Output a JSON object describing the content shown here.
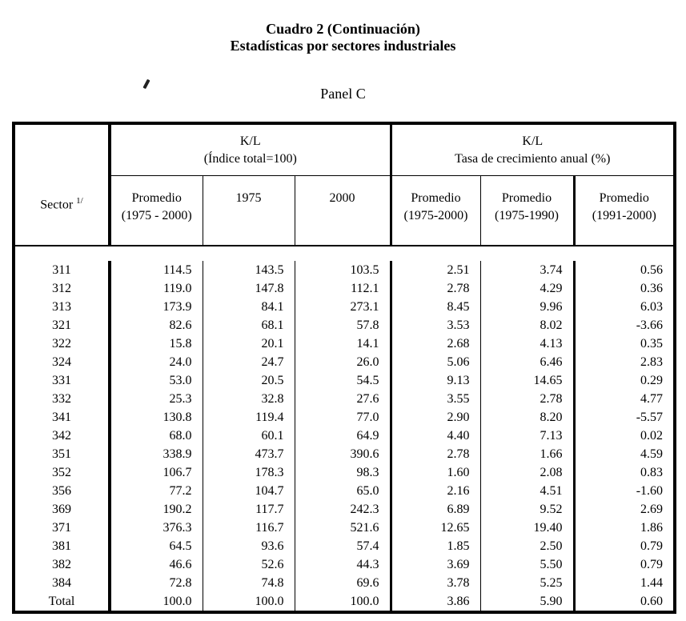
{
  "page": {
    "title_line1": "Cuadro 2 (Continuación)",
    "title_line2": "Estadísticas por sectores industriales",
    "panel_label": "Panel C"
  },
  "colors": {
    "text": "#000000",
    "border": "#000000",
    "background": "#ffffff"
  },
  "table": {
    "sector_header": {
      "label": "Sector",
      "superscript": "1/"
    },
    "groups": [
      {
        "line1": "K/L",
        "line2": "(Índice total=100)"
      },
      {
        "line1": "K/L",
        "line2": "Tasa de crecimiento anual (%)"
      }
    ],
    "columns": [
      {
        "line1": "Promedio",
        "line2": "(1975 - 2000)"
      },
      {
        "line1": "1975",
        "line2": ""
      },
      {
        "line1": "2000",
        "line2": ""
      },
      {
        "line1": "Promedio",
        "line2": "(1975-2000)"
      },
      {
        "line1": "Promedio",
        "line2": "(1975-1990)"
      },
      {
        "line1": "Promedio",
        "line2": "(1991-2000)"
      }
    ],
    "rows": [
      {
        "sector": "311",
        "values": [
          "114.5",
          "143.5",
          "103.5",
          "2.51",
          "3.74",
          "0.56"
        ]
      },
      {
        "sector": "312",
        "values": [
          "119.0",
          "147.8",
          "112.1",
          "2.78",
          "4.29",
          "0.36"
        ]
      },
      {
        "sector": "313",
        "values": [
          "173.9",
          "84.1",
          "273.1",
          "8.45",
          "9.96",
          "6.03"
        ]
      },
      {
        "sector": "321",
        "values": [
          "82.6",
          "68.1",
          "57.8",
          "3.53",
          "8.02",
          "-3.66"
        ]
      },
      {
        "sector": "322",
        "values": [
          "15.8",
          "20.1",
          "14.1",
          "2.68",
          "4.13",
          "0.35"
        ]
      },
      {
        "sector": "324",
        "values": [
          "24.0",
          "24.7",
          "26.0",
          "5.06",
          "6.46",
          "2.83"
        ]
      },
      {
        "sector": "331",
        "values": [
          "53.0",
          "20.5",
          "54.5",
          "9.13",
          "14.65",
          "0.29"
        ]
      },
      {
        "sector": "332",
        "values": [
          "25.3",
          "32.8",
          "27.6",
          "3.55",
          "2.78",
          "4.77"
        ]
      },
      {
        "sector": "341",
        "values": [
          "130.8",
          "119.4",
          "77.0",
          "2.90",
          "8.20",
          "-5.57"
        ]
      },
      {
        "sector": "342",
        "values": [
          "68.0",
          "60.1",
          "64.9",
          "4.40",
          "7.13",
          "0.02"
        ]
      },
      {
        "sector": "351",
        "values": [
          "338.9",
          "473.7",
          "390.6",
          "2.78",
          "1.66",
          "4.59"
        ]
      },
      {
        "sector": "352",
        "values": [
          "106.7",
          "178.3",
          "98.3",
          "1.60",
          "2.08",
          "0.83"
        ]
      },
      {
        "sector": "356",
        "values": [
          "77.2",
          "104.7",
          "65.0",
          "2.16",
          "4.51",
          "-1.60"
        ]
      },
      {
        "sector": "369",
        "values": [
          "190.2",
          "117.7",
          "242.3",
          "6.89",
          "9.52",
          "2.69"
        ]
      },
      {
        "sector": "371",
        "values": [
          "376.3",
          "116.7",
          "521.6",
          "12.65",
          "19.40",
          "1.86"
        ]
      },
      {
        "sector": "381",
        "values": [
          "64.5",
          "93.6",
          "57.4",
          "1.85",
          "2.50",
          "0.79"
        ]
      },
      {
        "sector": "382",
        "values": [
          "46.6",
          "52.6",
          "44.3",
          "3.69",
          "5.50",
          "0.79"
        ]
      },
      {
        "sector": "384",
        "values": [
          "72.8",
          "74.8",
          "69.6",
          "3.78",
          "5.25",
          "1.44"
        ]
      },
      {
        "sector": "Total",
        "values": [
          "100.0",
          "100.0",
          "100.0",
          "3.86",
          "5.90",
          "0.60"
        ]
      }
    ]
  }
}
